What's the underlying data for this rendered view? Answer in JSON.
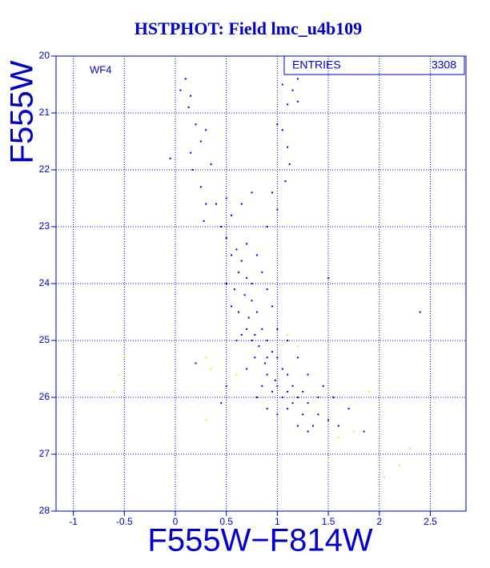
{
  "chart_data": {
    "type": "scatter",
    "title": "HSTPHOT: Field lmc_u4b109",
    "panel_label": "WF4",
    "stats_label": "ENTRIES",
    "stats_value": 3308,
    "x_label": "F555W−F814W",
    "y_label": "F555W",
    "xlim": [
      -1.17,
      2.85
    ],
    "ylim": [
      20,
      28
    ],
    "y_inverted": true,
    "xticks": [
      -1,
      -0.5,
      0,
      0.5,
      1,
      1.5,
      2,
      2.5
    ],
    "yticks": [
      20,
      21,
      22,
      23,
      24,
      25,
      26,
      27,
      28
    ],
    "grid": true,
    "axis_color": "#0000cc",
    "series": [
      {
        "color": "#0000cc",
        "x": [
          0.1,
          0.15,
          0.13,
          0.05,
          -0.05,
          0.2,
          0.25,
          0.15,
          0.17,
          0.3,
          0.35,
          1.0,
          1.05,
          1.1,
          1.12,
          1.08,
          1.15,
          1.05,
          1.2,
          1.2,
          1.1,
          0.25,
          0.3,
          0.28,
          0.4,
          0.5,
          0.45,
          0.55,
          0.65,
          0.75,
          0.95,
          1.0,
          0.9,
          0.5,
          0.6,
          0.65,
          0.7,
          0.55,
          0.62,
          0.7,
          0.58,
          0.68,
          0.75,
          0.62,
          0.72,
          0.8,
          0.7,
          0.78,
          0.85,
          0.75,
          0.82,
          0.9,
          0.95,
          0.78,
          0.88,
          1.0,
          1.05,
          0.9,
          0.98,
          1.1,
          1.15,
          0.95,
          1.05,
          1.2,
          1.3,
          1.1,
          1.25,
          1.4,
          1.5,
          1.35,
          1.2,
          1.0,
          1.6,
          1.85,
          1.7,
          1.55,
          1.45,
          1.3,
          1.2,
          1.1,
          1.0,
          0.95,
          0.9,
          0.85,
          0.8,
          0.55,
          0.5,
          0.6,
          0.7,
          0.8,
          0.9,
          1.5,
          2.4,
          0.2,
          0.5,
          0.45,
          1.3,
          1.1,
          1.4,
          0.85,
          0.75,
          0.65,
          0.9,
          1.0,
          1.15,
          1.25
        ],
        "values": [
          20.4,
          20.7,
          20.9,
          20.6,
          21.8,
          21.2,
          21.5,
          21.7,
          22.0,
          21.3,
          21.9,
          21.2,
          21.3,
          21.6,
          21.9,
          22.2,
          20.6,
          20.5,
          20.4,
          20.8,
          20.85,
          22.3,
          22.6,
          22.9,
          22.6,
          22.5,
          23.0,
          22.8,
          22.6,
          22.4,
          22.4,
          22.7,
          23.0,
          23.2,
          23.4,
          23.6,
          23.3,
          23.5,
          23.8,
          23.9,
          24.1,
          24.2,
          24.3,
          24.5,
          24.6,
          24.5,
          24.8,
          24.9,
          24.8,
          25.0,
          25.1,
          25.0,
          25.2,
          25.3,
          25.4,
          25.3,
          25.5,
          25.6,
          25.7,
          25.6,
          25.8,
          25.9,
          26.0,
          26.0,
          26.1,
          26.2,
          26.3,
          26.3,
          26.4,
          26.5,
          26.5,
          26.3,
          26.5,
          26.6,
          26.2,
          26.0,
          25.8,
          25.6,
          25.3,
          25.0,
          24.8,
          24.4,
          24.1,
          23.8,
          23.5,
          24.4,
          24.0,
          25.0,
          25.5,
          26.0,
          26.2,
          23.9,
          24.5,
          25.4,
          25.8,
          26.1,
          26.6,
          25.9,
          26.0,
          25.8,
          24.0,
          24.9,
          25.3,
          25.8,
          26.1,
          25.9
        ]
      },
      {
        "color": "#e8e840",
        "x": [
          -0.55,
          -0.6,
          -0.5,
          0.3,
          0.35,
          0.3,
          0.6,
          1.1,
          1.2,
          1.5,
          1.75,
          2.05,
          2.2,
          2.3,
          1.9,
          1.6
        ],
        "values": [
          25.6,
          25.9,
          25.3,
          25.3,
          25.5,
          26.4,
          25.6,
          24.9,
          25.1,
          27.1,
          26.6,
          27.4,
          27.2,
          26.9,
          25.9,
          26.7
        ]
      }
    ]
  }
}
